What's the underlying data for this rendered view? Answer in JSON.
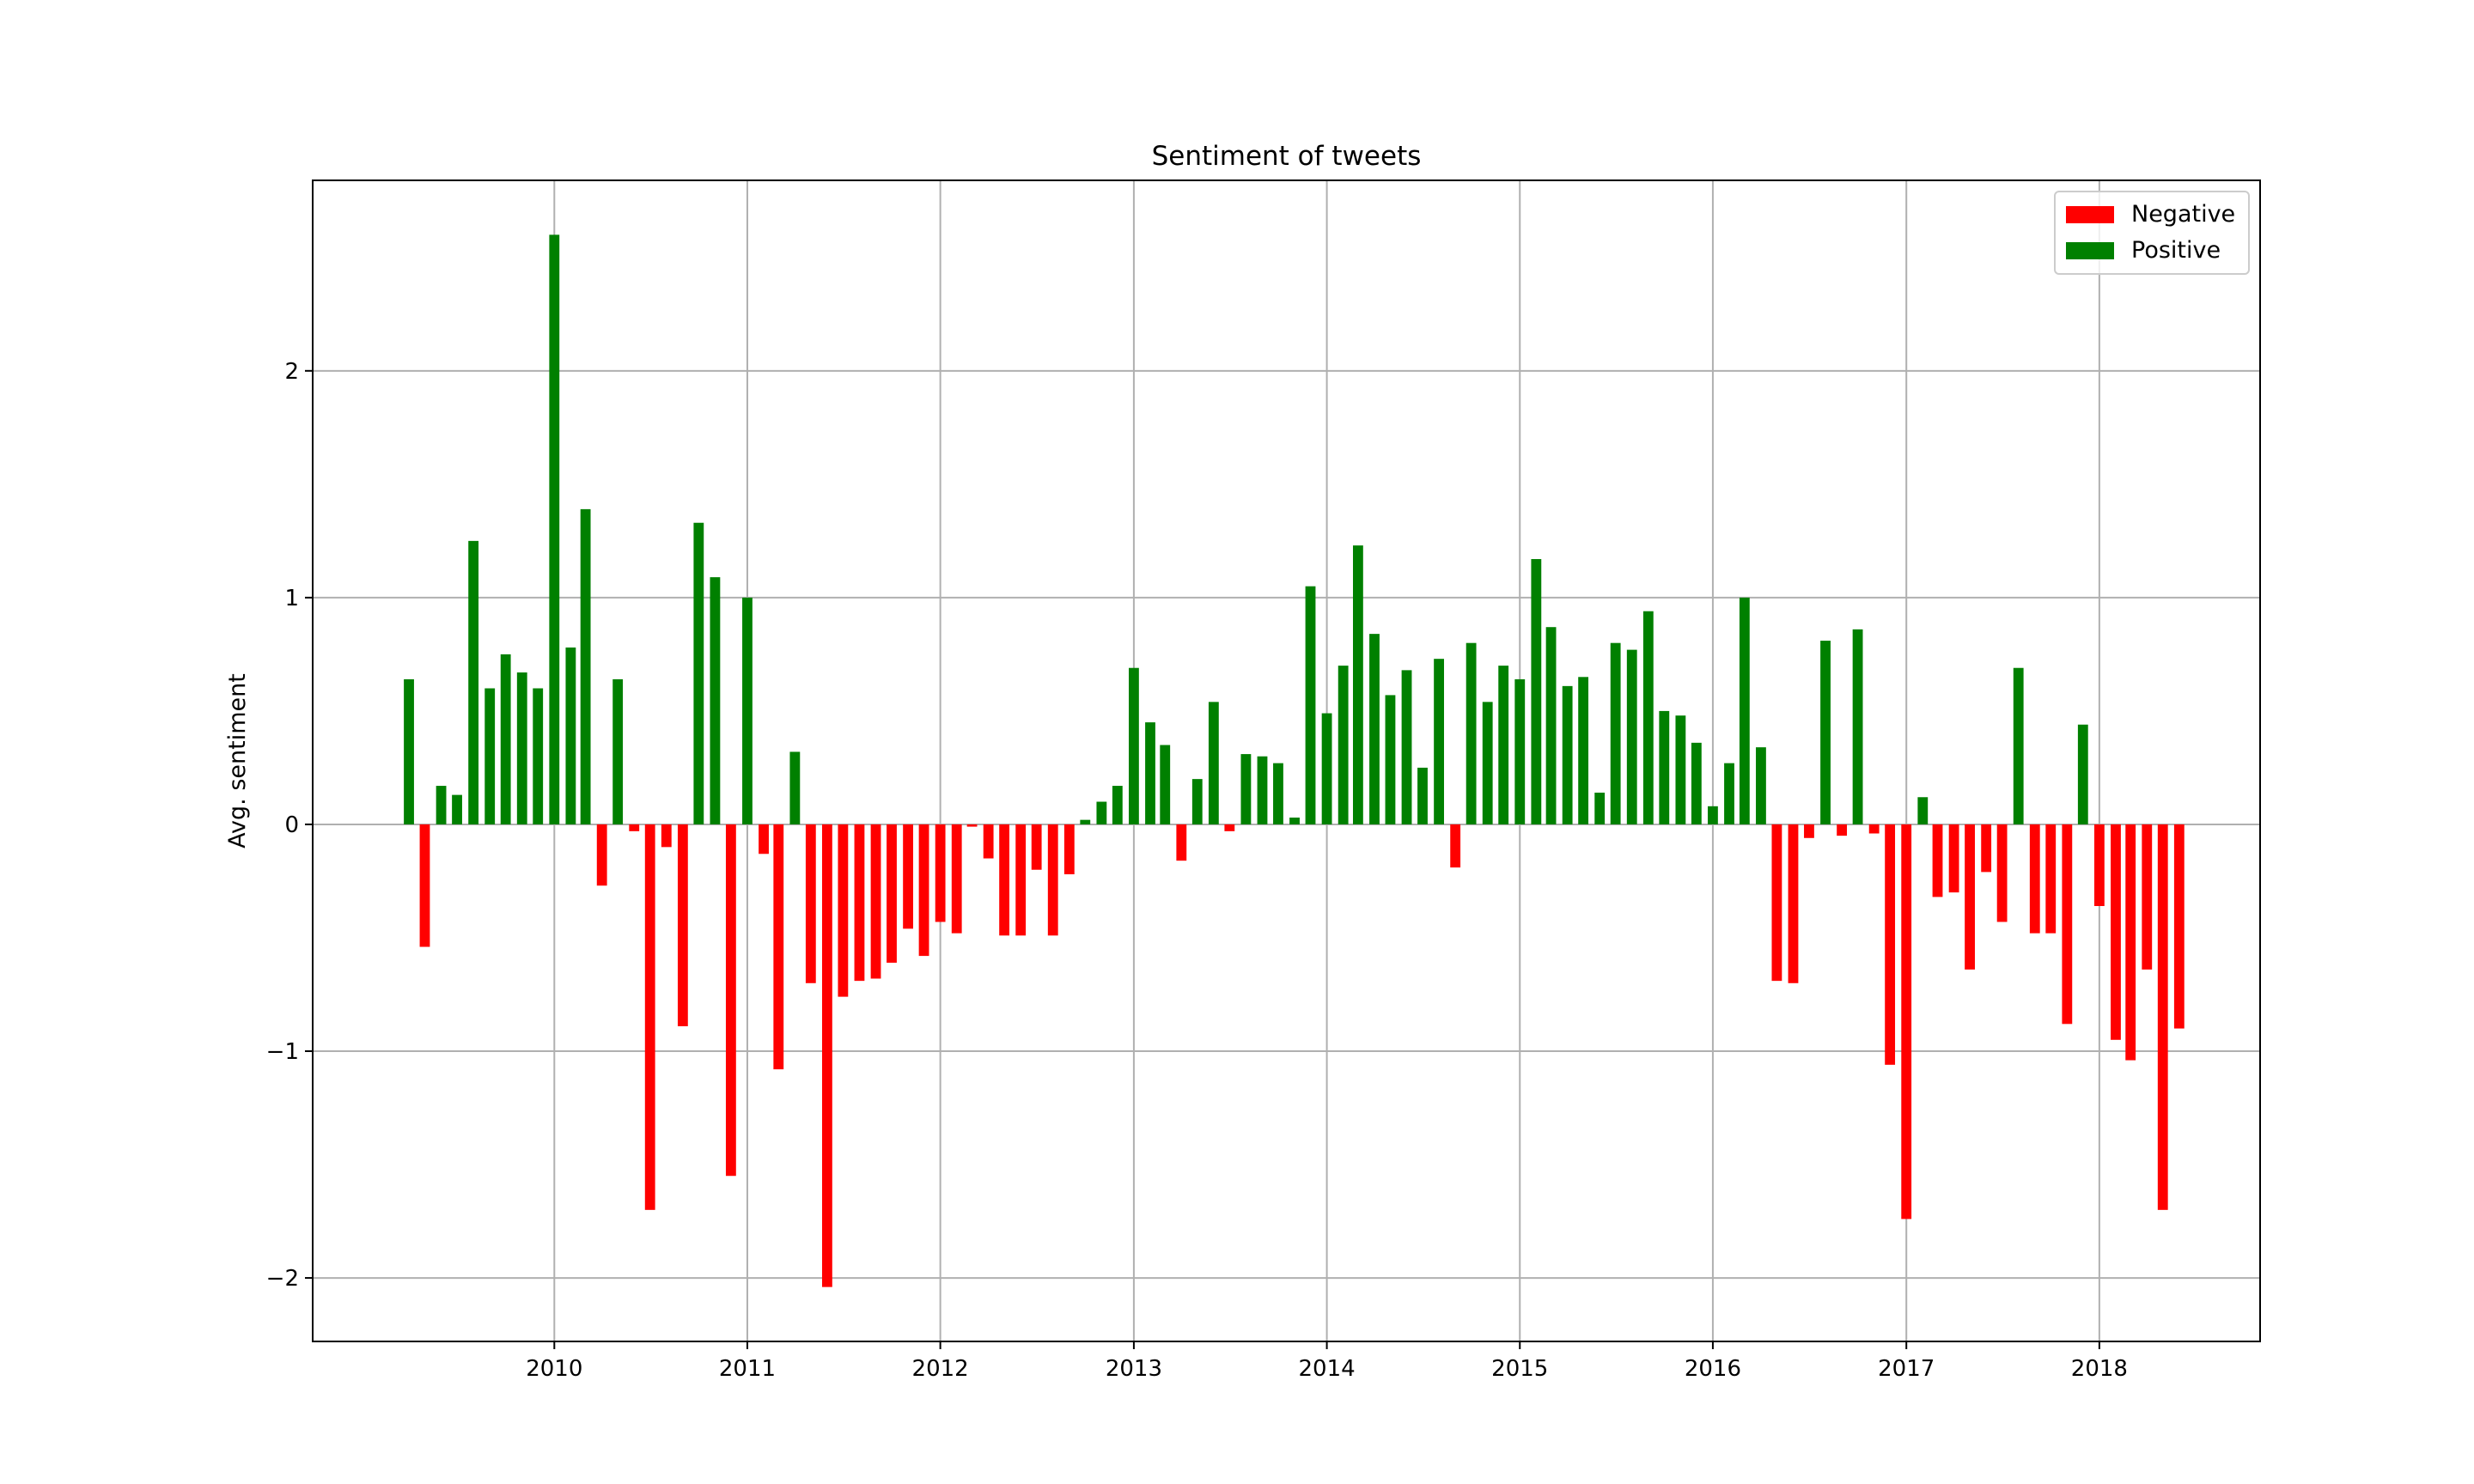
{
  "chart_data": {
    "type": "bar",
    "title": "Sentiment of tweets",
    "xlabel": "",
    "ylabel": "Avg. sentiment",
    "x_tick_labels": [
      "2010",
      "2011",
      "2012",
      "2013",
      "2014",
      "2015",
      "2016",
      "2017",
      "2018"
    ],
    "y_tick_labels": [
      "−2",
      "−1",
      "0",
      "1",
      "2"
    ],
    "y_ticks": [
      -2,
      -1,
      0,
      1,
      2
    ],
    "xlim": [
      "2008-10-01",
      "2018-11-01"
    ],
    "ylim": [
      -2.28,
      2.84
    ],
    "grid": true,
    "legend_position": "top-right",
    "start_month": "2009-04",
    "series": [
      {
        "name": "Negative",
        "color": "#ff0000"
      },
      {
        "name": "Positive",
        "color": "#008000"
      }
    ],
    "values": [
      0.64,
      -0.54,
      0.17,
      0.13,
      1.25,
      0.6,
      0.75,
      0.67,
      0.6,
      2.6,
      0.78,
      1.39,
      -0.27,
      0.64,
      -0.03,
      -1.7,
      -0.1,
      -0.89,
      1.33,
      1.09,
      -1.55,
      1.0,
      -0.13,
      -1.08,
      0.32,
      -0.7,
      -2.04,
      -0.76,
      -0.69,
      -0.68,
      -0.61,
      -0.46,
      -0.58,
      -0.43,
      -0.48,
      -0.01,
      -0.15,
      -0.49,
      -0.49,
      -0.2,
      -0.49,
      -0.22,
      0.02,
      0.1,
      0.17,
      0.69,
      0.45,
      0.35,
      -0.16,
      0.2,
      0.54,
      -0.03,
      0.31,
      0.3,
      0.27,
      0.03,
      1.05,
      0.49,
      0.7,
      1.23,
      0.84,
      0.57,
      0.68,
      0.25,
      0.73,
      -0.19,
      0.8,
      0.54,
      0.7,
      0.64,
      1.17,
      0.87,
      0.61,
      0.65,
      0.14,
      0.8,
      0.77,
      0.94,
      0.5,
      0.48,
      0.36,
      0.08,
      0.27,
      1.0,
      0.34,
      -0.69,
      -0.7,
      -0.06,
      0.81,
      -0.05,
      0.86,
      -0.04,
      -1.06,
      -1.74,
      0.12,
      -0.32,
      -0.3,
      -0.64,
      -0.21,
      -0.43,
      0.69,
      -0.48,
      -0.48,
      -0.88,
      0.44,
      -0.36,
      -0.95,
      -1.04,
      -0.64,
      -1.7,
      -0.9
    ]
  }
}
